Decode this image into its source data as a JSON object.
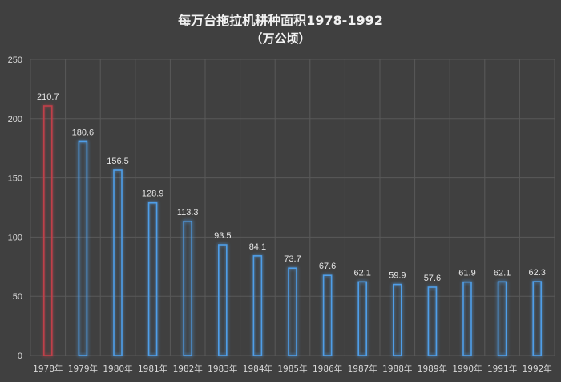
{
  "chart_data": {
    "type": "bar",
    "title": "每万台拖拉机耕种面积1978-1992",
    "subtitle": "（万公顷）",
    "categories": [
      "1978年",
      "1979年",
      "1980年",
      "1981年",
      "1982年",
      "1983年",
      "1984年",
      "1985年",
      "1986年",
      "1987年",
      "1988年",
      "1989年",
      "1990年",
      "1991年",
      "1992年"
    ],
    "values": [
      210.7,
      180.6,
      156.5,
      128.9,
      113.3,
      93.5,
      84.1,
      73.7,
      67.6,
      62.1,
      59.9,
      57.6,
      61.9,
      62.1,
      62.3
    ],
    "value_labels": [
      "210.7",
      "180.6",
      "156.5",
      "128.9",
      "113.3",
      "93.5",
      "84.1",
      "73.7",
      "67.6",
      "62.1",
      "59.9",
      "57.6",
      "61.9",
      "62.1",
      "62.3"
    ],
    "ylim": [
      0,
      250
    ],
    "yticks": [
      "0",
      "50",
      "100",
      "150",
      "200",
      "250"
    ],
    "grid": true,
    "colors": {
      "background": "#404040",
      "grid": "#595959",
      "bar_outline": "#4f9ee8",
      "highlight_outline": "#c0404a"
    }
  }
}
